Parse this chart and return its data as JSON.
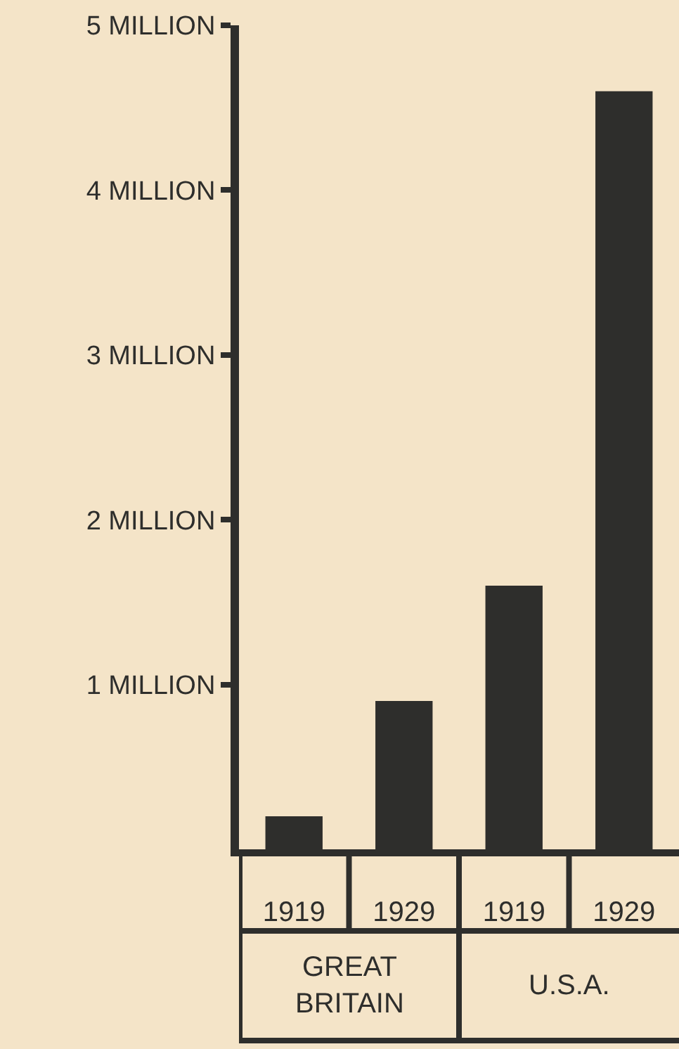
{
  "chart_data": {
    "type": "bar",
    "categories": [
      "1919",
      "1929",
      "1919",
      "1929"
    ],
    "values": [
      0.2,
      0.9,
      1.6,
      4.6
    ],
    "color": "#2e2e2c",
    "ylim": [
      0,
      5
    ],
    "yticks": [
      {
        "value": 1,
        "label": "1 MILLION"
      },
      {
        "value": 2,
        "label": "2 MILLION"
      },
      {
        "value": 3,
        "label": "3 MILLION"
      },
      {
        "value": 4,
        "label": "4 MILLION"
      },
      {
        "value": 5,
        "label": "5 MILLION"
      }
    ],
    "annotations": [
      "GREAT BRITAIN",
      "U.S.A."
    ],
    "grid": false
  }
}
